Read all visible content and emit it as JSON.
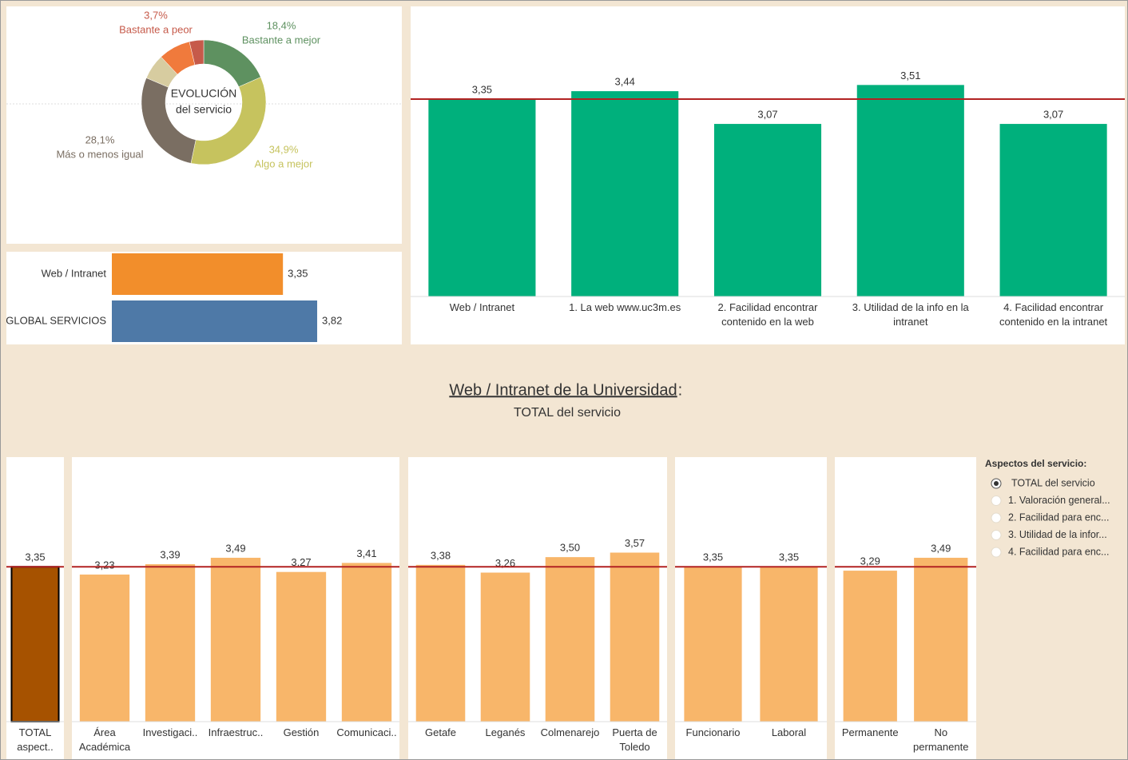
{
  "header": {
    "title": "Web / Intranet de la Universidad",
    "title_suffix": ":",
    "subtitle": "TOTAL del servicio"
  },
  "filter": {
    "title": "Aspectos del servicio:",
    "options": [
      "TOTAL del servicio",
      "1. Valoración general...",
      "2. Facilidad para enc...",
      "3. Utilidad de la infor...",
      "4. Facilidad para enc..."
    ],
    "selected": 0
  },
  "chart_data": [
    {
      "type": "pie",
      "center_text": [
        "EVOLUCIÓN",
        "del servicio"
      ],
      "categories": [
        "Bastante a mejor",
        "Algo a mejor",
        "Más o menos igual",
        null,
        null,
        "Bastante a peor"
      ],
      "values": [
        18.4,
        34.9,
        28.1,
        6.6,
        8.3,
        3.7
      ],
      "value_labels": [
        "18,4%",
        "34,9%",
        "28,1%",
        null,
        null,
        "3,7%"
      ],
      "colors": [
        "#5e9160",
        "#c6c35e",
        "#7a6e62",
        "#d7cca0",
        "#f07a3c",
        "#c65a4a"
      ]
    },
    {
      "type": "barh",
      "categories": [
        "Web / Intranet",
        "GLOBAL SERVICIOS"
      ],
      "values": [
        3.35,
        3.82
      ],
      "value_labels": [
        "3,35",
        "3,82"
      ],
      "colors": [
        "#f28e2b",
        "#4e79a7"
      ],
      "xlim": [
        1,
        4.5
      ]
    },
    {
      "type": "bar",
      "categories": [
        "Web / Intranet",
        "1. La web www.uc3m.es",
        "2. Facilidad encontrar contenido en la web",
        "3. Utilidad de la info en la intranet",
        "4. Facilidad encontrar contenido en la intranet"
      ],
      "values": [
        3.35,
        3.44,
        3.07,
        3.51,
        3.07
      ],
      "value_labels": [
        "3,35",
        "3,44",
        "3,07",
        "3,51",
        "3,07"
      ],
      "color": "#00b07c",
      "ylim": [
        1.12,
        4.38
      ],
      "reference_line": 3.35,
      "reference_color": "#b22222"
    },
    {
      "type": "bar",
      "categories": [
        "TOTAL aspect.."
      ],
      "values": [
        3.35
      ],
      "value_labels": [
        "3,35"
      ],
      "color": "#a65200",
      "outline": "#000000",
      "ylim": [
        0.95,
        5.05
      ],
      "reference_line": 3.35,
      "reference_color": "#b22222"
    },
    {
      "type": "bar",
      "categories": [
        "Área Académica",
        "Investigaci..",
        "Infraestruc..",
        "Gestión",
        "Comunicaci.."
      ],
      "values": [
        3.23,
        3.39,
        3.49,
        3.27,
        3.41
      ],
      "value_labels": [
        "3,23",
        "3,39",
        "3,49",
        "3,27",
        "3,41"
      ],
      "color": "#f8b66a",
      "ylim": [
        0.95,
        5.05
      ],
      "reference_line": 3.35,
      "reference_color": "#b22222"
    },
    {
      "type": "bar",
      "categories": [
        "Getafe",
        "Leganés",
        "Colmenarejo",
        "Puerta de Toledo"
      ],
      "values": [
        3.38,
        3.26,
        3.5,
        3.57
      ],
      "value_labels": [
        "3,38",
        "3,26",
        "3,50",
        "3,57"
      ],
      "color": "#f8b66a",
      "ylim": [
        0.95,
        5.05
      ],
      "reference_line": 3.35,
      "reference_color": "#b22222"
    },
    {
      "type": "bar",
      "categories": [
        "Funcionario",
        "Laboral"
      ],
      "values": [
        3.35,
        3.35
      ],
      "value_labels": [
        "3,35",
        "3,35"
      ],
      "color": "#f8b66a",
      "ylim": [
        0.95,
        5.05
      ],
      "reference_line": 3.35,
      "reference_color": "#b22222"
    },
    {
      "type": "bar",
      "categories": [
        "Permanente",
        "No permanente"
      ],
      "values": [
        3.29,
        3.49
      ],
      "value_labels": [
        "3,29",
        "3,49"
      ],
      "color": "#f8b66a",
      "ylim": [
        0.95,
        5.05
      ],
      "reference_line": 3.35,
      "reference_color": "#b22222"
    }
  ]
}
